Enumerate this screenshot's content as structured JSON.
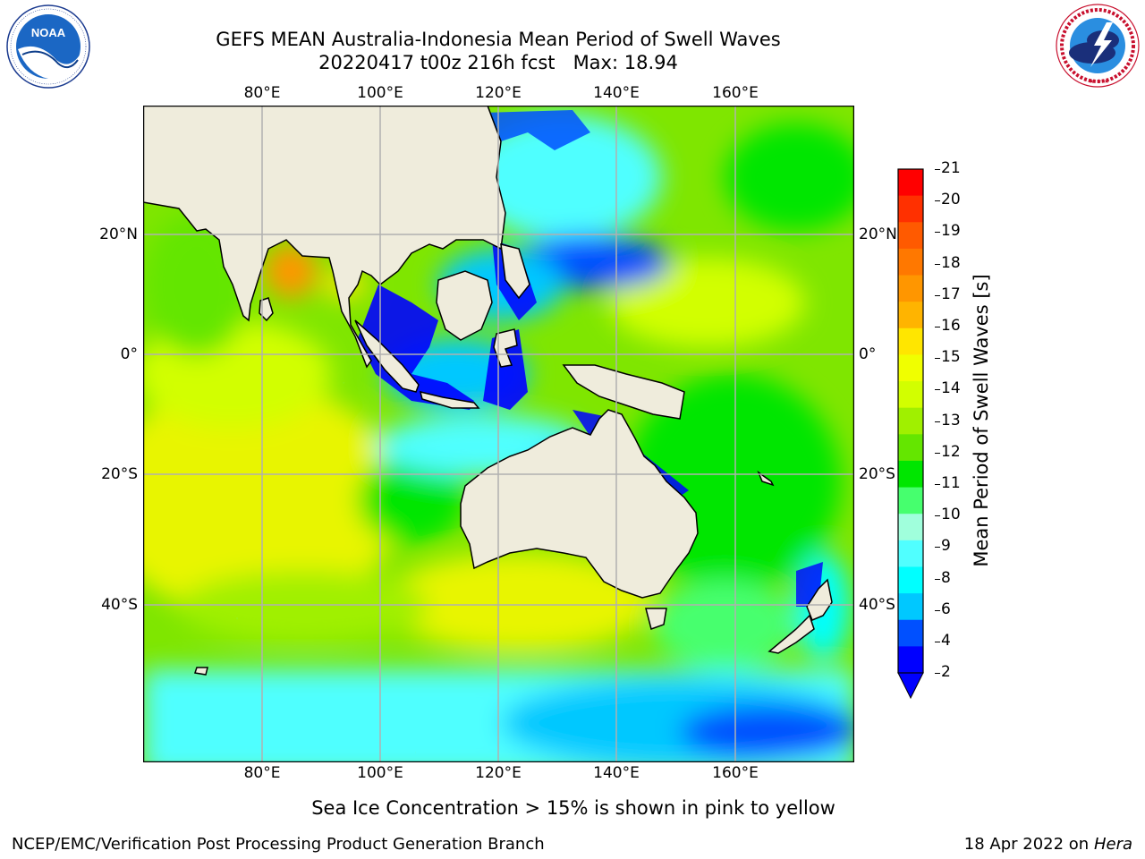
{
  "header": {
    "title_line1": "GEFS MEAN Australia-Indonesia Mean Period of Swell Waves",
    "title_line2": "20220417 t00z 216h fcst   Max: 18.94"
  },
  "logos": {
    "left_name": "NOAA",
    "left_ring_text": "NATIONAL OCEANIC AND ATMOSPHERIC ADMINISTRATION · U.S. DEPARTMENT OF COMMERCE",
    "right_ring_text": "NATIONAL WEATHER SERVICE"
  },
  "map": {
    "lon_labels": [
      "80°E",
      "100°E",
      "120°E",
      "140°E",
      "160°E"
    ],
    "lat_labels_left": [
      "20°N",
      "0°",
      "20°S",
      "40°S"
    ],
    "lat_labels_right": [
      "20°N",
      "0°",
      "20°S",
      "40°S"
    ]
  },
  "colorbar": {
    "label": "Mean Period of Swell Waves [s]",
    "ticks": [
      "21",
      "20",
      "19",
      "18",
      "17",
      "16",
      "15",
      "14",
      "13",
      "12",
      "11",
      "10",
      "9",
      "8",
      "6",
      "4",
      "2"
    ],
    "colors": [
      "#ff0000",
      "#ff3000",
      "#ff5a00",
      "#ff7800",
      "#ff9600",
      "#ffb400",
      "#ffe600",
      "#f0ff00",
      "#d2ff00",
      "#a0f000",
      "#64e600",
      "#00e600",
      "#46ff6e",
      "#a0ffdc",
      "#50ffff",
      "#00ffff",
      "#00c8ff",
      "#0050ff",
      "#0000ff"
    ],
    "under_color": "#0000ff"
  },
  "notes": {
    "ice_note": "Sea Ice Concentration > 15% is shown in pink to yellow"
  },
  "footer": {
    "left": "NCEP/EMC/Verification Post Processing Product Generation Branch",
    "right_prefix": "18 Apr 2022 on ",
    "right_machine": "Hera"
  }
}
